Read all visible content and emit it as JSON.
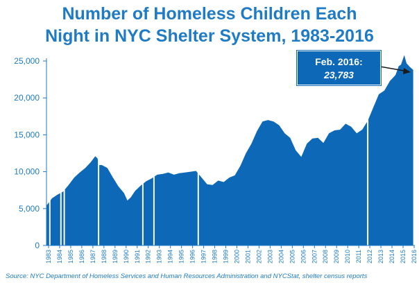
{
  "title_line1": "Number of Homeless Children Each",
  "title_line2": "Night in NYC Shelter System, 1983-2016",
  "source": "Source:  NYC Department of Homeless Services and Human Resources Administration and NYCStat, shelter census reports",
  "colors": {
    "bar": "#0d68b8",
    "title": "#1f7bc4",
    "axis": "#1f7bc4"
  },
  "annotation": {
    "label": "Feb. 2016:",
    "value": "23,783"
  },
  "chart_data": {
    "type": "area",
    "title": "Number of Homeless Children Each Night in NYC Shelter System, 1983-2016",
    "xlabel": "",
    "ylabel": "",
    "ylim": [
      0,
      25000
    ],
    "yticks": [
      0,
      5000,
      10000,
      15000,
      20000,
      25000
    ],
    "ytick_labels": [
      "0",
      "5,000",
      "10,000",
      "15,000",
      "20,000",
      "25,000"
    ],
    "xlim": [
      1983.0,
      2016.25
    ],
    "xtick_labels": [
      "1983",
      "1984",
      "1985",
      "1986",
      "1987",
      "1988",
      "1989",
      "1990",
      "1991",
      "1992",
      "1993",
      "1994",
      "1995",
      "1996",
      "1997",
      "1998",
      "1999",
      "2000",
      "2001",
      "2002",
      "2003",
      "2004",
      "2005",
      "2006",
      "2007",
      "2008",
      "2009",
      "2010",
      "2011",
      "2012",
      "2013",
      "2014",
      "2015",
      "2016"
    ],
    "grid": false,
    "gaps": [
      1983.3,
      1984.3,
      1984.6,
      1987.7,
      1991.7,
      1992.7,
      1996.7,
      2012.0
    ],
    "x": [
      1983.0,
      1983.3,
      1983.5,
      1984.0,
      1984.5,
      1985.0,
      1985.5,
      1986.0,
      1986.5,
      1987.0,
      1987.4,
      1987.6,
      1987.75,
      1988.0,
      1988.5,
      1989.0,
      1989.5,
      1990.0,
      1990.3,
      1990.6,
      1991.0,
      1991.5,
      1992.0,
      1992.5,
      1993.0,
      1993.5,
      1994.0,
      1994.5,
      1995.0,
      1995.5,
      1996.0,
      1996.5,
      1997.0,
      1997.5,
      1998.0,
      1998.5,
      1999.0,
      1999.5,
      2000.0,
      2000.5,
      2001.0,
      2001.5,
      2002.0,
      2002.5,
      2003.0,
      2003.5,
      2004.0,
      2004.5,
      2005.0,
      2005.5,
      2006.0,
      2006.5,
      2007.0,
      2007.5,
      2008.0,
      2008.5,
      2009.0,
      2009.5,
      2010.0,
      2010.5,
      2011.0,
      2011.5,
      2012.0,
      2012.5,
      2013.0,
      2013.5,
      2014.0,
      2014.5,
      2014.8,
      2015.0,
      2015.3,
      2015.5,
      2015.8,
      2016.1
    ],
    "values": [
      5400,
      6000,
      6400,
      6900,
      7300,
      8200,
      9200,
      9900,
      10500,
      11300,
      12100,
      11800,
      10900,
      10900,
      10500,
      9200,
      8000,
      7100,
      6100,
      6500,
      7400,
      8100,
      8700,
      9100,
      9600,
      9700,
      9900,
      9600,
      9800,
      9900,
      10000,
      10100,
      9200,
      8300,
      8200,
      8800,
      8600,
      9200,
      9500,
      10800,
      12500,
      13800,
      15500,
      16800,
      17000,
      16800,
      16300,
      15200,
      14600,
      12900,
      12000,
      13800,
      14500,
      14600,
      13900,
      15200,
      15600,
      15700,
      16500,
      16100,
      15200,
      15700,
      16900,
      18700,
      20500,
      21000,
      22300,
      23100,
      24300,
      24500,
      25800,
      24700,
      24200,
      23800
    ]
  }
}
